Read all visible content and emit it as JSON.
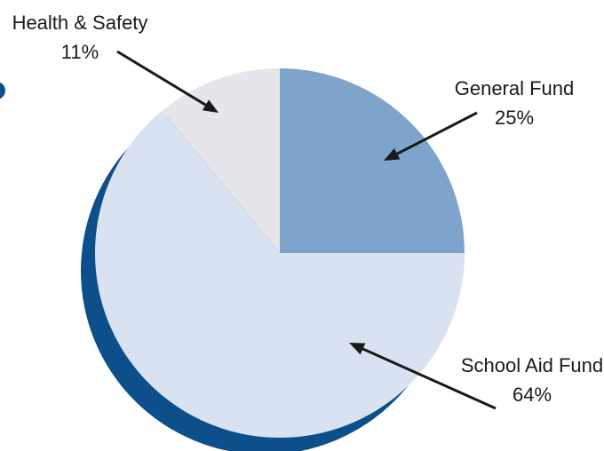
{
  "chart_data": {
    "type": "pie",
    "slices": [
      {
        "label": "General Fund",
        "value": 25,
        "percent_label": "25%",
        "color": "#7ea4cb"
      },
      {
        "label": "School Aid Fund",
        "value": 64,
        "percent_label": "64%",
        "color": "#d8e2f0"
      },
      {
        "label": "Health & Safety",
        "value": 11,
        "percent_label": "11%",
        "color": "#e4e6eb"
      }
    ],
    "start_angle_deg": 0,
    "direction": "clockwise",
    "shadow_color": "#0d4f8b",
    "accent_dot_color": "#0d4f8b",
    "arrow_color": "#1a1a1a"
  }
}
